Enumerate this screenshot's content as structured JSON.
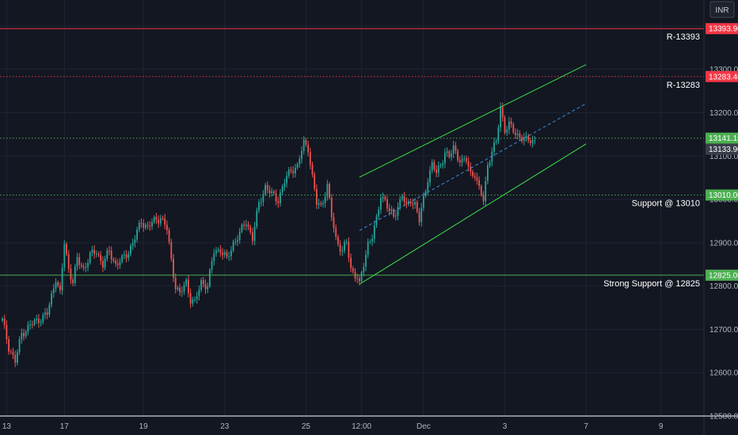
{
  "currency_button": "INR",
  "chart_data": {
    "type": "candlestick",
    "title": "",
    "xlabel": "",
    "ylabel": "",
    "ylim": [
      12500,
      13460
    ],
    "grid": true,
    "y_ticks": [
      {
        "value": 13400,
        "label": "13400.00"
      },
      {
        "value": 13300,
        "label": "13300.00"
      },
      {
        "value": 13200,
        "label": "13200.00"
      },
      {
        "value": 13100,
        "label": "13100.00"
      },
      {
        "value": 13000,
        "label": "13000.00"
      },
      {
        "value": 12900,
        "label": "12900.00"
      },
      {
        "value": 12800,
        "label": "12800.00"
      },
      {
        "value": 12700,
        "label": "12700.00"
      },
      {
        "value": 12600,
        "label": "12600.00"
      },
      {
        "value": 12500,
        "label": "12500.00"
      }
    ],
    "x_ticks": [
      {
        "index": 2,
        "label": "13"
      },
      {
        "index": 29,
        "label": "17"
      },
      {
        "index": 66,
        "label": "19"
      },
      {
        "index": 104,
        "label": "23"
      },
      {
        "index": 142,
        "label": "25"
      },
      {
        "index": 168,
        "label": "12:00"
      },
      {
        "index": 197,
        "label": "Dec"
      },
      {
        "index": 235,
        "label": "3"
      },
      {
        "index": 273,
        "label": "7"
      },
      {
        "index": 308,
        "label": "9"
      }
    ],
    "levels": [
      {
        "value": 13393.9,
        "label": "13393.90",
        "annotation": "R-13393",
        "color": "#f23645",
        "style": "solid"
      },
      {
        "value": 13283.4,
        "label": "13283.40",
        "annotation": "R-13283",
        "color": "#f23645",
        "style": "dotted"
      },
      {
        "value": 13141.15,
        "label": "13141.15",
        "annotation": "",
        "color": "#4caf50",
        "style": "dotted"
      },
      {
        "value": 13010.0,
        "label": "13010.00",
        "annotation": "Support @ 13010",
        "color": "#4caf50",
        "style": "dotted"
      },
      {
        "value": 12825.0,
        "label": "12825.00",
        "annotation": "Strong Support @ 12825",
        "color": "#4caf50",
        "style": "solid"
      }
    ],
    "last_price": {
      "value": 13133.9,
      "label": "13133.90"
    },
    "channel": {
      "upper": [
        [
          167,
          13051
        ],
        [
          273,
          13311
        ]
      ],
      "lower": [
        [
          167,
          12804
        ],
        [
          273,
          13128
        ]
      ],
      "middle": [
        [
          167,
          12928
        ],
        [
          273,
          13221
        ]
      ]
    },
    "anchors": [
      [
        0,
        12720
      ],
      [
        3,
        12660
      ],
      [
        6,
        12625
      ],
      [
        9,
        12690
      ],
      [
        12,
        12705
      ],
      [
        16,
        12720
      ],
      [
        21,
        12735
      ],
      [
        25,
        12820
      ],
      [
        27,
        12780
      ],
      [
        29,
        12900
      ],
      [
        31,
        12840
      ],
      [
        33,
        12810
      ],
      [
        35,
        12860
      ],
      [
        38,
        12840
      ],
      [
        41,
        12870
      ],
      [
        44,
        12880
      ],
      [
        47,
        12850
      ],
      [
        50,
        12880
      ],
      [
        53,
        12850
      ],
      [
        56,
        12860
      ],
      [
        59,
        12880
      ],
      [
        62,
        12910
      ],
      [
        65,
        12950
      ],
      [
        68,
        12935
      ],
      [
        71,
        12950
      ],
      [
        74,
        12960
      ],
      [
        77,
        12930
      ],
      [
        79,
        12860
      ],
      [
        81,
        12800
      ],
      [
        83,
        12780
      ],
      [
        86,
        12810
      ],
      [
        88,
        12770
      ],
      [
        90,
        12760
      ],
      [
        93,
        12810
      ],
      [
        96,
        12800
      ],
      [
        99,
        12880
      ],
      [
        102,
        12885
      ],
      [
        105,
        12860
      ],
      [
        108,
        12900
      ],
      [
        111,
        12920
      ],
      [
        114,
        12950
      ],
      [
        117,
        12910
      ],
      [
        120,
        12990
      ],
      [
        123,
        13030
      ],
      [
        126,
        13010
      ],
      [
        129,
        13000
      ],
      [
        132,
        13040
      ],
      [
        135,
        13070
      ],
      [
        138,
        13075
      ],
      [
        141,
        13130
      ],
      [
        143,
        13120
      ],
      [
        145,
        13050
      ],
      [
        147,
        12990
      ],
      [
        149,
        12985
      ],
      [
        152,
        13030
      ],
      [
        154,
        12960
      ],
      [
        156,
        12910
      ],
      [
        159,
        12880
      ],
      [
        161,
        12900
      ],
      [
        163,
        12840
      ],
      [
        166,
        12820
      ],
      [
        167,
        12800
      ],
      [
        169,
        12850
      ],
      [
        171,
        12900
      ],
      [
        173,
        12915
      ],
      [
        175,
        12950
      ],
      [
        177,
        13010
      ],
      [
        179,
        13000
      ],
      [
        181,
        12970
      ],
      [
        183,
        12960
      ],
      [
        185,
        12985
      ],
      [
        187,
        13010
      ],
      [
        189,
        12980
      ],
      [
        191,
        13000
      ],
      [
        193,
        12990
      ],
      [
        195,
        12950
      ],
      [
        197,
        13000
      ],
      [
        199,
        13050
      ],
      [
        201,
        13080
      ],
      [
        203,
        13060
      ],
      [
        205,
        13080
      ],
      [
        207,
        13110
      ],
      [
        209,
        13095
      ],
      [
        211,
        13120
      ],
      [
        213,
        13100
      ],
      [
        215,
        13085
      ],
      [
        217,
        13090
      ],
      [
        219,
        13060
      ],
      [
        221,
        13060
      ],
      [
        223,
        13020
      ],
      [
        225,
        13000
      ],
      [
        227,
        13080
      ],
      [
        229,
        13110
      ],
      [
        231,
        13130
      ],
      [
        233,
        13215
      ],
      [
        235,
        13160
      ],
      [
        237,
        13170
      ],
      [
        239,
        13160
      ],
      [
        241,
        13150
      ],
      [
        243,
        13140
      ],
      [
        245,
        13135
      ],
      [
        247,
        13140
      ],
      [
        249,
        13133.9
      ]
    ]
  }
}
